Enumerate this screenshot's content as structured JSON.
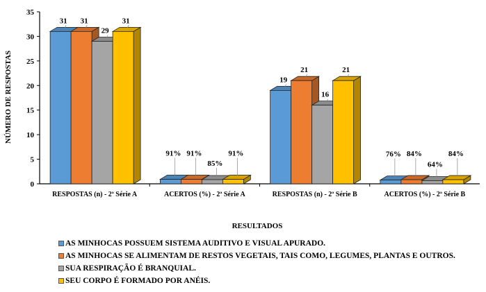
{
  "chart_data": {
    "type": "bar",
    "ylabel": "NÚMERO DE RESPOSTAS",
    "xlabel": "RESULTADOS",
    "ylim": [
      0,
      35
    ],
    "yticks": [
      0,
      5,
      10,
      15,
      20,
      25,
      30,
      35
    ],
    "categories": [
      "RESPOSTAS (n) - 2ª Série A",
      "ACERTOS (%)  - 2ª Série A",
      "RESPOSTAS (n) - 2ª Série B",
      "ACERTOS (%)  - 2ª Série B"
    ],
    "series": [
      {
        "name": "AS MINHOCAS POSSUEM SISTEMA AUDITIVO E VISUAL APURADO.",
        "color": "#5B9BD5",
        "values": [
          31,
          0.91,
          19,
          0.76
        ],
        "labels": [
          "31",
          "91%",
          "19",
          "76%"
        ]
      },
      {
        "name": "AS MINHOCAS SE ALIMENTAM DE RESTOS VEGETAIS, TAIS COMO, LEGUMES, PLANTAS E OUTROS.",
        "color": "#ED7D31",
        "values": [
          31,
          0.91,
          21,
          0.84
        ],
        "labels": [
          "31",
          "91%",
          "21",
          "84%"
        ]
      },
      {
        "name": "SUA RESPIRAÇÃO É BRANQUIAL.",
        "color": "#A5A5A5",
        "values": [
          29,
          0.85,
          16,
          0.64
        ],
        "labels": [
          "29",
          "85%",
          "16",
          "64%"
        ]
      },
      {
        "name": "SEU CORPO É FORMADO POR ANÉIS.",
        "color": "#FFC000",
        "values": [
          31,
          0.91,
          21,
          0.84
        ],
        "labels": [
          "31",
          "91%",
          "21",
          "84%"
        ]
      }
    ],
    "grid": false,
    "legend_position": "bottom-left"
  }
}
